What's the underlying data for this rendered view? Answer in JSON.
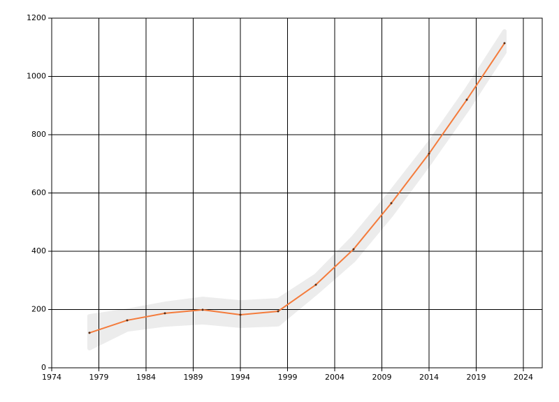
{
  "chart_data": {
    "type": "line",
    "x": [
      1978,
      1982,
      1986,
      1990,
      1994,
      1998,
      2002,
      2006,
      2010,
      2014,
      2018,
      2022
    ],
    "series": [
      {
        "color": "#f47b3b",
        "values": [
          120,
          163,
          187,
          199,
          182,
          194,
          285,
          407,
          565,
          735,
          920,
          1114
        ]
      }
    ],
    "band": {
      "color": "#ececec",
      "upper": [
        177,
        196,
        220,
        237,
        225,
        232,
        316,
        448,
        604,
        770,
        955,
        1155
      ],
      "lower": [
        67,
        131,
        148,
        156,
        144,
        149,
        256,
        369,
        525,
        700,
        884,
        1083
      ]
    },
    "marker_color": "#5a2a10",
    "xlim": [
      1974,
      2026
    ],
    "xticks": [
      1974,
      1979,
      1984,
      1989,
      1994,
      1999,
      2004,
      2009,
      2014,
      2019,
      2024
    ],
    "ylim": [
      0,
      1200
    ],
    "yticks": [
      0,
      200,
      400,
      600,
      800,
      1000,
      1200
    ],
    "grid": true
  }
}
